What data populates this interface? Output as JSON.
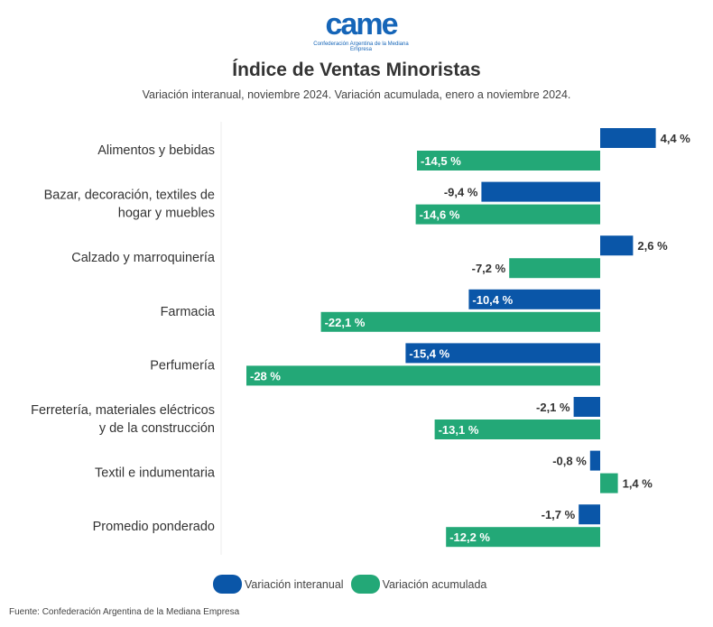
{
  "logo": {
    "text": "came",
    "tagline": "Confederación Argentina de la Mediana Empresa"
  },
  "chart_data": {
    "type": "bar",
    "orientation": "horizontal",
    "title": "Índice de Ventas Minoristas",
    "subtitle": "Variación interanual, noviembre 2024. Variación acumulada, enero a noviembre 2024.",
    "categories": [
      [
        "Alimentos y bebidas"
      ],
      [
        "Bazar, decoración, textiles de",
        "hogar y muebles"
      ],
      [
        "Calzado y marroquinería"
      ],
      [
        "Farmacia"
      ],
      [
        "Perfumería"
      ],
      [
        "Ferretería, materiales eléctricos",
        "y de la construcción"
      ],
      [
        "Textil e indumentaria"
      ],
      [
        "Promedio ponderado"
      ]
    ],
    "series": [
      {
        "name": "Variación interanual",
        "color": "#0a56a8",
        "values": [
          4.4,
          -9.4,
          2.6,
          -10.4,
          -15.4,
          -2.1,
          -0.8,
          -1.7
        ],
        "labels": [
          "4,4 %",
          "-9,4 %",
          "2,6 %",
          "-10,4 %",
          "-15,4 %",
          "-2,1 %",
          "-0,8 %",
          "-1,7 %"
        ]
      },
      {
        "name": "Variación acumulada",
        "color": "#23a877",
        "values": [
          -14.5,
          -14.6,
          -7.2,
          -22.1,
          -28,
          -13.1,
          1.4,
          -12.2
        ],
        "labels": [
          "-14,5 %",
          "-14,6 %",
          "-7,2 %",
          "-22,1 %",
          "-28 %",
          "-13,1 %",
          "1,4 %",
          "-12,2 %"
        ]
      }
    ],
    "xlim": [
      -28,
      4.4
    ],
    "grid": false,
    "legend": "bottom"
  },
  "footer": "Fuente: Confederación Argentina de la Mediana Empresa"
}
